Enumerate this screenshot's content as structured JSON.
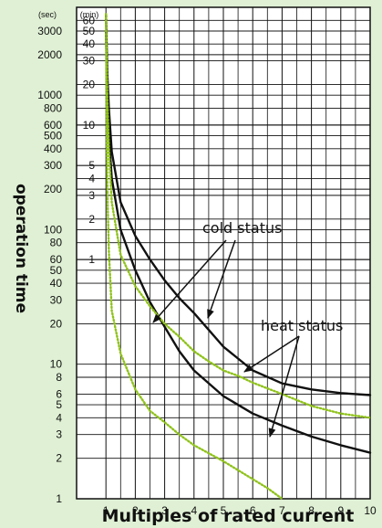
{
  "chart_data": {
    "type": "line",
    "title": "",
    "xlabel": "Multiples of rated current",
    "ylabel": "operation time",
    "y_unit_seconds": "(sec)",
    "y_unit_minutes": "(min)",
    "xlim": [
      0,
      10
    ],
    "ylim": [
      1,
      4500
    ],
    "y_scale": "log",
    "grid": true,
    "x_ticks": [
      "1",
      "2",
      "3",
      "4",
      "5",
      "6",
      "7",
      "8",
      "9",
      "10"
    ],
    "y_ticks_seconds": [
      "1",
      "2",
      "3",
      "4",
      "5",
      "6",
      "8",
      "10",
      "20",
      "30",
      "40",
      "50",
      "60",
      "80",
      "100",
      "200",
      "300",
      "400",
      "500",
      "600",
      "800",
      "1000",
      "2000",
      "3000"
    ],
    "y_ticks_minutes": [
      "1",
      "2",
      "3",
      "4",
      "5",
      "10",
      "20",
      "30",
      "40",
      "50",
      "60"
    ],
    "series": [
      {
        "label": "cold_upper",
        "color": "#111111",
        "style": "solid",
        "x": [
          1.0,
          1.05,
          1.1,
          1.2,
          1.5,
          2,
          2.5,
          3,
          3.5,
          4,
          4.5,
          5,
          6,
          7,
          8,
          9,
          10
        ],
        "y": [
          4000,
          1400,
          800,
          380,
          160,
          90,
          60,
          42,
          31,
          24,
          18,
          13.5,
          9,
          7.2,
          6.5,
          6.1,
          5.9
        ]
      },
      {
        "label": "cold_lower",
        "color": "#111111",
        "style": "solid",
        "x": [
          1.0,
          1.05,
          1.1,
          1.2,
          1.5,
          2,
          2.5,
          3,
          3.5,
          4,
          5,
          6,
          7,
          8,
          9,
          10
        ],
        "y": [
          3000,
          900,
          500,
          240,
          100,
          50,
          29,
          19,
          12.5,
          9,
          5.8,
          4.3,
          3.5,
          2.9,
          2.5,
          2.2
        ]
      },
      {
        "label": "heat_upper",
        "color": "#8fc21a",
        "style": "dotted",
        "x": [
          1.0,
          1.05,
          1.1,
          1.2,
          1.5,
          2,
          2.5,
          3,
          3.5,
          4,
          4.5,
          5,
          5.5,
          6,
          7,
          8,
          9,
          10
        ],
        "y": [
          4000,
          900,
          400,
          160,
          65,
          38,
          27,
          20,
          16,
          12.5,
          10.5,
          9,
          8.2,
          7.3,
          6,
          4.9,
          4.3,
          4
        ]
      },
      {
        "label": "heat_lower",
        "color": "#8fc21a",
        "style": "dotted",
        "x": [
          1.0,
          1.03,
          1.06,
          1.1,
          1.2,
          1.5,
          2,
          2.5,
          3,
          3.5,
          4,
          5,
          6,
          6.5,
          7
        ],
        "y": [
          4000,
          400,
          150,
          70,
          25,
          12,
          6.5,
          4.5,
          3.7,
          3,
          2.5,
          1.9,
          1.4,
          1.2,
          1
        ]
      }
    ],
    "annotations": [
      {
        "text": "cold status",
        "points_to": [
          "cold_lower",
          "cold_upper"
        ]
      },
      {
        "text": "heat status",
        "points_to": [
          "heat_upper",
          "heat_lower"
        ]
      }
    ]
  }
}
